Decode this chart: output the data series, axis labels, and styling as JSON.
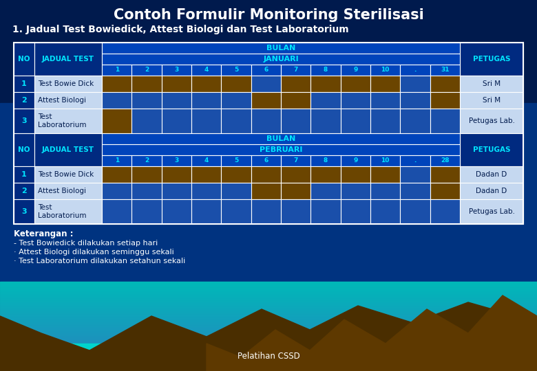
{
  "title": "Contoh Formulir Monitoring Sterilisasi",
  "subtitle": "1. Jadual Test Bowiedick, Attest Biologi dan Test Laboratorium",
  "columns1": [
    "1",
    "2",
    "3",
    "4",
    "5",
    "6",
    "7",
    "8",
    "9",
    "10",
    ".",
    "31"
  ],
  "columns2": [
    "1",
    "2",
    "3",
    "4",
    "5",
    "6",
    "7",
    "8",
    "9",
    "10",
    ".",
    "28"
  ],
  "section1": {
    "bulan": "BULAN",
    "month": "JANUARI",
    "rows": [
      {
        "no": "1",
        "test": "Test Bowie Dick",
        "petugas": "Sri M",
        "filled": [
          0,
          1,
          2,
          3,
          4,
          6,
          7,
          8,
          9,
          11
        ]
      },
      {
        "no": "2",
        "test": "Attest Biologi",
        "petugas": "Sri M",
        "filled": [
          5,
          6,
          11
        ]
      },
      {
        "no": "3",
        "test": "Test\nLaboratorium",
        "petugas": "Petugas Lab.",
        "filled": [
          0
        ]
      }
    ]
  },
  "section2": {
    "bulan": "BULAN",
    "month": "PEBRUARI",
    "rows": [
      {
        "no": "1",
        "test": "Test Bowie Dick",
        "petugas": "Dadan D",
        "filled": [
          0,
          1,
          2,
          3,
          4,
          5,
          6,
          7,
          8,
          9,
          11
        ]
      },
      {
        "no": "2",
        "test": "Attest Biologi",
        "petugas": "Dadan D",
        "filled": [
          5,
          6,
          11
        ]
      },
      {
        "no": "3",
        "test": "Test\nLaboratorium",
        "petugas": "Petugas Lab.",
        "filled": []
      }
    ]
  },
  "keterangan": "Keterangan :",
  "notes": [
    "- Test Bowiedick dilakukan setiap hari",
    "· Attest Biologi dilakukan seminggu sekali",
    "· Test Laboratorium dilakukan setahun sekali"
  ],
  "footer": "Pelatihan CSSD",
  "bg_dark": "#001a4d",
  "bg_mid": "#003380",
  "bg_lower_sky": "#2a7fbf",
  "bg_teal": "#00b8b8",
  "header_dark": "#002a80",
  "header_mid": "#0044bb",
  "cell_blue": "#1a4faa",
  "cell_brown": "#6b4500",
  "row_light": "#c5d8f0",
  "row_no_bg": "#002a80",
  "border_color": "#ffffff",
  "cyan_text": "#00e5ff",
  "white_text": "#ffffff",
  "dark_text": "#001a4d",
  "mountain_dark": "#4a2e00",
  "mountain_mid": "#5e3900",
  "sea_teal": "#00d4cc"
}
